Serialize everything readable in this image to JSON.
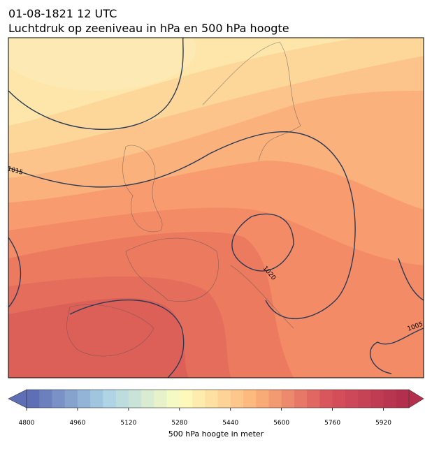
{
  "header": {
    "title_line1": "01-08-1821 12 UTC",
    "title_line2": "Luchtdruk op zeeniveau in hPa en 500 hPa hoogte"
  },
  "map": {
    "contour_labels": [
      "1015",
      "1020",
      "1005"
    ]
  },
  "colorbar": {
    "range": [
      4800,
      6000
    ],
    "step": 40,
    "ticks": [
      4800,
      4960,
      5120,
      5280,
      5440,
      5600,
      5760,
      5920
    ],
    "label": "500 hPa hoogte in meter"
  }
}
